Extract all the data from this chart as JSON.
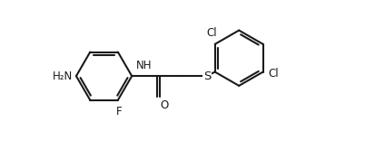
{
  "bg_color": "#ffffff",
  "bond_color": "#1a1a1a",
  "line_width": 1.5,
  "font_size": 8.5,
  "figsize": [
    4.13,
    1.56
  ],
  "dpi": 100,
  "xlim": [
    -0.5,
    9.5
  ],
  "ylim": [
    -1.8,
    3.2
  ]
}
